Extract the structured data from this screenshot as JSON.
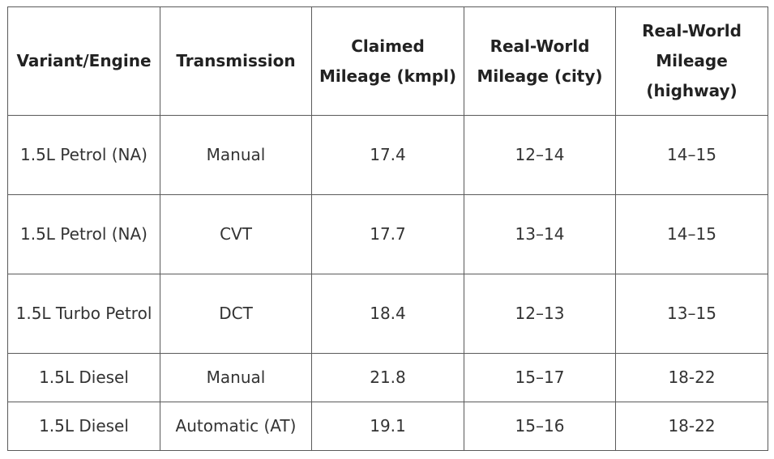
{
  "table": {
    "headers": [
      "Variant/Engine",
      "Transmission",
      "Claimed Mileage (kmpl)",
      "Real-World Mileage (city)",
      "Real-World Mileage (highway)"
    ],
    "rows": [
      [
        "1.5L Petrol (NA)",
        "Manual",
        "17.4",
        "12–14",
        "14–15"
      ],
      [
        "1.5L Petrol (NA)",
        "CVT",
        "17.7",
        "13–14",
        "14–15"
      ],
      [
        "1.5L Turbo Petrol",
        "DCT",
        "18.4",
        "12–13",
        "13–15"
      ],
      [
        "1.5L Diesel",
        "Manual",
        "21.8",
        "15–17",
        "18-22"
      ],
      [
        "1.5L Diesel",
        "Automatic (AT)",
        "19.1",
        "15–16",
        "18-22"
      ]
    ]
  }
}
